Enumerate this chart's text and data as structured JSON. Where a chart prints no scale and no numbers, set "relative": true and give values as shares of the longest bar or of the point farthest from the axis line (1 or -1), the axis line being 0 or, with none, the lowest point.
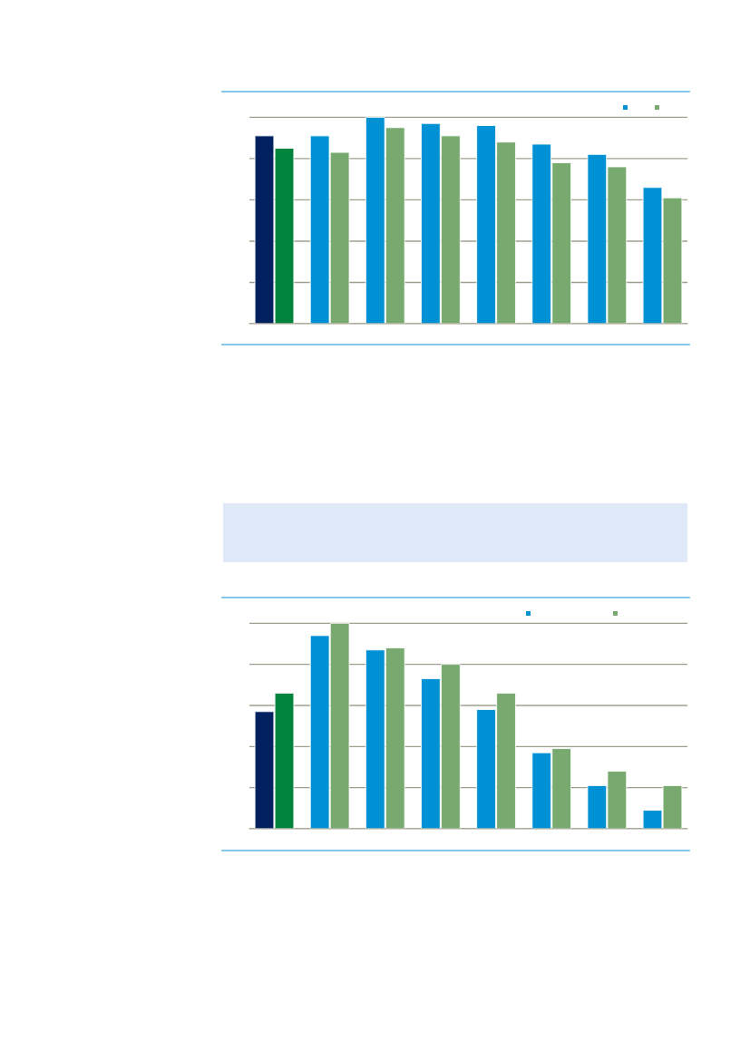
{
  "chart_data": [
    {
      "type": "bar",
      "relative": true,
      "categories": [
        null,
        null,
        null,
        null,
        null,
        null,
        null,
        null
      ],
      "grid": "y",
      "series": [
        {
          "colors": [
            "#002060",
            "#0090d4",
            "#0090d4",
            "#0090d4",
            "#0090d4",
            "#0090d4",
            "#0090d4",
            "#0090d4"
          ],
          "values": [
            0.91,
            0.91,
            1.0,
            0.97,
            0.96,
            0.87,
            0.82,
            0.66
          ]
        },
        {
          "colors": [
            "#00843d",
            "#78a96e",
            "#78a96e",
            "#78a96e",
            "#78a96e",
            "#78a96e",
            "#78a96e",
            "#78a96e"
          ],
          "values": [
            0.85,
            0.83,
            0.95,
            0.91,
            0.88,
            0.78,
            0.76,
            0.61
          ]
        }
      ]
    },
    {
      "type": "bar",
      "relative": true,
      "categories": [
        null,
        null,
        null,
        null,
        null,
        null,
        null,
        null
      ],
      "grid": "y",
      "series": [
        {
          "colors": [
            "#002060",
            "#0090d4",
            "#0090d4",
            "#0090d4",
            "#0090d4",
            "#0090d4",
            "#0090d4",
            "#0090d4"
          ],
          "values": [
            0.57,
            0.94,
            0.87,
            0.73,
            0.58,
            0.37,
            0.21,
            0.09
          ]
        },
        {
          "colors": [
            "#00843d",
            "#78a96e",
            "#78a96e",
            "#78a96e",
            "#78a96e",
            "#78a96e",
            "#78a96e",
            "#78a96e"
          ],
          "values": [
            0.66,
            1.0,
            0.88,
            0.8,
            0.66,
            0.39,
            0.28,
            0.21
          ]
        }
      ]
    }
  ]
}
